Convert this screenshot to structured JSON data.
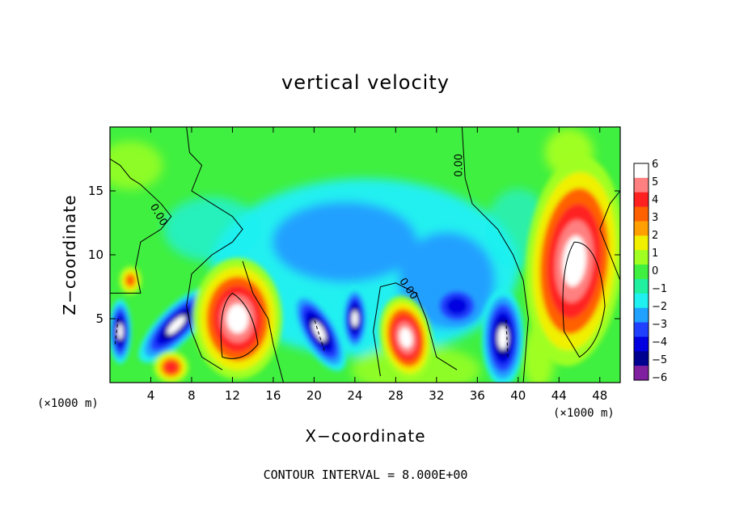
{
  "chart_data": {
    "type": "heatmap",
    "title": "vertical velocity",
    "xlabel": "X−coordinate",
    "ylabel": "Z−coordinate",
    "x_unit_left": "(×1000 m)",
    "x_unit_right": "(×1000 m)",
    "contour_interval_text": "CONTOUR INTERVAL = 8.000E+00",
    "contour_label": "0.00",
    "xlim": [
      0,
      50
    ],
    "ylim": [
      0,
      20
    ],
    "x_ticks": [
      "4",
      "8",
      "12",
      "16",
      "20",
      "24",
      "28",
      "32",
      "36",
      "40",
      "44",
      "48"
    ],
    "y_ticks": [
      "5",
      "10",
      "15"
    ],
    "colorbar": {
      "levels": [
        "6",
        "5",
        "4",
        "3",
        "2",
        "1",
        "0",
        "−1",
        "−2",
        "−3",
        "−4",
        "−5",
        "−6"
      ],
      "colors": [
        "#ffffff",
        "#ff8080",
        "#ff2020",
        "#ff6000",
        "#ffa000",
        "#f0f000",
        "#a0ff20",
        "#40f040",
        "#20f0a0",
        "#20f0f0",
        "#20a0ff",
        "#2040ff",
        "#0000e0",
        "#000090",
        "#8020a0"
      ]
    },
    "features": [
      {
        "x": 6.5,
        "z": 4.5,
        "sign": "down"
      },
      {
        "x": 12.5,
        "z": 5.0,
        "sign": "up"
      },
      {
        "x": 20.5,
        "z": 4.0,
        "sign": "down"
      },
      {
        "x": 29.0,
        "z": 3.5,
        "sign": "up"
      },
      {
        "x": 38.5,
        "z": 3.5,
        "sign": "down"
      },
      {
        "x": 45.5,
        "z": 9.5,
        "sign": "up"
      }
    ]
  }
}
